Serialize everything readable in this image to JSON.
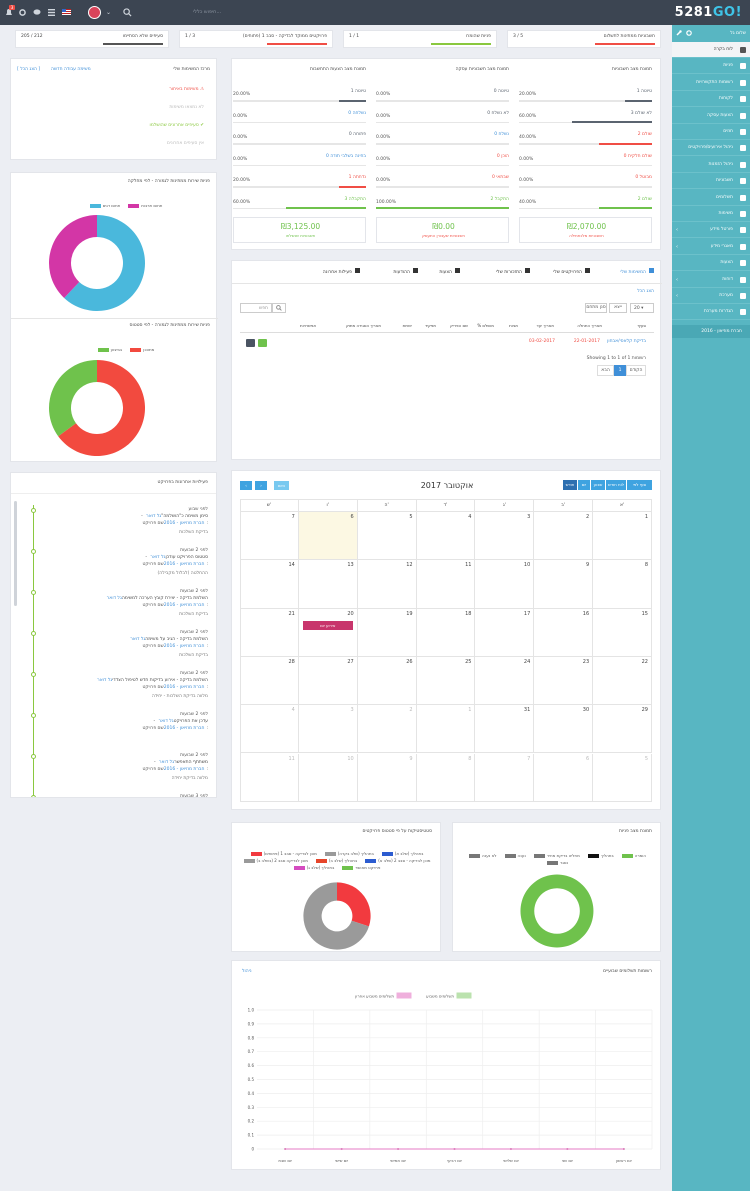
{
  "brand": {
    "logo_main": "5281",
    "logo_go": "GO!"
  },
  "topbar": {
    "search_placeholder": "חיפוש כללי...",
    "notif_count": "3"
  },
  "sidebar": {
    "user": "שלום גל",
    "items": [
      {
        "label": "לוח בקרה",
        "active": true
      },
      {
        "label": "פניות"
      },
      {
        "label": "רשומות התקשרויות"
      },
      {
        "label": "לקוחות"
      },
      {
        "label": "הצעות עסקה"
      },
      {
        "label": "חוזים"
      },
      {
        "label": "ניהול אירועים/פרויקטים"
      },
      {
        "label": "ניהול הזמנות"
      },
      {
        "label": "חשבוניות"
      },
      {
        "label": "תשלומים"
      },
      {
        "label": "משימות"
      },
      {
        "label": "פורטל מידע",
        "arrow": true
      },
      {
        "label": "מאגרי מידע",
        "arrow": true
      },
      {
        "label": "הצעות"
      },
      {
        "label": "דוחות",
        "arrow": true
      },
      {
        "label": "מערכת",
        "arrow": true
      },
      {
        "label": "הגדרות מערכת"
      }
    ],
    "company": "חברת מוזיאון - 2016"
  },
  "kpis": [
    {
      "label": "חשבוניות ממתינות לתשלום",
      "value": "3 / 5",
      "color": "#f04e45"
    },
    {
      "label": "פניות שהומרו",
      "value": "1 / 1",
      "color": "#8ac83f"
    },
    {
      "label": "פרויקטים ממוקד לבדיקה - סבב 1 (פתוחים)",
      "value": "1 / 3",
      "color": "#f04e45"
    },
    {
      "label": "סעיפים שלא הסתיימו",
      "value": "205 / 212",
      "color": "#555"
    }
  ],
  "my_tasks": {
    "title": "מרכז המשימות שלי",
    "links": {
      "new_task": "משימה עבודה חדשה",
      "all": "הצג הכל"
    },
    "rows": [
      {
        "text": "משימות באיחור",
        "color": "#f04e45"
      },
      {
        "text": "לא נמצאו משימות",
        "color": "#bbb"
      },
      {
        "text": "סעיפים אחרונים שהושלמו",
        "color": "#8ac83f"
      },
      {
        "text": "אין סעיפים אחרונים",
        "color": "#bbb"
      }
    ]
  },
  "donut1": {
    "title": "פניות שירות ממתינות לגמורה - לפי מחלקה",
    "legend": [
      {
        "label": "תחום דגים",
        "color": "#4ab8dc"
      },
      {
        "label": "תחום תרבות",
        "color": "#d336a6"
      }
    ],
    "values": [
      62,
      38
    ]
  },
  "donut2": {
    "title": "פניות שירות ממתינות לגמורה - לפי סטטוס",
    "legend": [
      {
        "label": "בביצוע",
        "color": "#6fc24c"
      },
      {
        "label": "מתוכנן",
        "color": "#f24a3f"
      }
    ],
    "values": [
      65,
      35
    ]
  },
  "statuses": {
    "columns": [
      {
        "title": "תמונת מצב חשבוניות",
        "rows": [
          {
            "label": "1 טיוטה",
            "pct": "20.00%",
            "color": "#5b6470"
          },
          {
            "label": "3 לא שולם",
            "pct": "60.00%",
            "color": "#5b6470"
          },
          {
            "label": "2 שולם",
            "pct": "40.00%",
            "color": "#f04e45"
          },
          {
            "label": "0 שולם חלקית",
            "pct": "0.00%",
            "color": "#f04e45"
          },
          {
            "label": "0 מבוטל",
            "pct": "0.00%",
            "color": "#f04e45"
          },
          {
            "label": "2 שולם",
            "pct": "40.00%",
            "color": "#6fc24c"
          }
        ],
        "amount": "₪2,070.00",
        "amount_label": "חשבוניות מלכתחילה",
        "amount_color": "#6fc24c",
        "amount_label_color": "#f04e45"
      },
      {
        "title": "תמונת מצב חשבוניות עסקה",
        "rows": [
          {
            "label": "0 טיוטה",
            "pct": "0.00%",
            "color": "#5b6470"
          },
          {
            "label": "0 לא נשלח",
            "pct": "0.00%",
            "color": "#5b6470"
          },
          {
            "label": "0 נשלח",
            "pct": "0.00%",
            "color": "#3f8fd8"
          },
          {
            "label": "0 הוכן",
            "pct": "0.00%",
            "color": "#f04e45"
          },
          {
            "label": "0 שבתאי",
            "pct": "0.00%",
            "color": "#f04e45"
          },
          {
            "label": "2 התקבל",
            "pct": "100.00%",
            "color": "#6fc24c"
          }
        ],
        "amount": "₪0.00",
        "amount_label": "חשבוניות שעבורן התעסק",
        "amount_color": "#6fc24c",
        "amount_label_color": "#f04e45"
      },
      {
        "title": "תמונת מצב הצעות התחשבות",
        "rows": [
          {
            "label": "1 טיוטה",
            "pct": "20.00%",
            "color": "#5b6470"
          },
          {
            "label": "0 נשלחה",
            "pct": "0.00%",
            "color": "#3f8fd8"
          },
          {
            "label": "0 פתוחה",
            "pct": "0.00%",
            "color": "#5b6470"
          },
          {
            "label": "0 בחינה בשלבי תודה",
            "pct": "0.00%",
            "color": "#3f8fd8"
          },
          {
            "label": "1 נדחתה",
            "pct": "20.00%",
            "color": "#f04e45"
          },
          {
            "label": "3 התקבלה",
            "pct": "60.00%",
            "color": "#6fc24c"
          }
        ],
        "amount": "₪3,125.00",
        "amount_label": "חשבוניות שנשלחו",
        "amount_color": "#6fc24c",
        "amount_label_color": "#6fc24c"
      }
    ]
  },
  "projects": {
    "tabs": [
      "המשימות שלי",
      "הפרויקטים שלי",
      "התזכורות שלי",
      "הצעות",
      "ההודעות",
      "פעילות אחרונה"
    ],
    "view_all": "הצג הכל",
    "per_page": "20",
    "sort": "ייצא",
    "filter": "סנן מתחם",
    "search_placeholder": "חפש",
    "columns": [
      "סעיף",
      "תאריך התחלה",
      "תאריך יעד",
      "תגיות",
      "% מושלם",
      "שם הפריק",
      "תפקיד",
      "ישויות",
      "תאריך הסגירה מתוק",
      "אפשרויות"
    ],
    "rows": [
      {
        "name": "בדיקת קלאסי/אבחון",
        "start": "22-01-2017",
        "due": "03-02-2017"
      }
    ],
    "info": "Showing 1 to 1 of 1 רשומות",
    "prev": "הקודם",
    "page": "1",
    "next": "הבא"
  },
  "activity": {
    "title": "פעילויות אחרונות בפרויקט",
    "items": [
      {
        "time": "לפני שבוע",
        "who": "גל דואר",
        "text": "- סימן משימה כ\"הושלמה\"",
        "proj_label": "שם פרויקט:",
        "proj": "חברת מוזיאון - 2016",
        "note": "בדיקת השלכות"
      },
      {
        "time": "לפני 2 שבועות",
        "who": "גל דואר",
        "text": "- סטטוס הפרויקט עודכן",
        "proj_label": "שם פרויקט:",
        "proj": "חברת מוזיאון - 2016",
        "note": "ההחלטה (לבלול מקבילה)"
      },
      {
        "time": "לפני 2 שבועות",
        "who": "גל דואר",
        "text": "השלמת בדיקה - יצירת קובץ הערכה למשימה",
        "proj_label": "שם פרויקט:",
        "proj": "חברת מוזיאון - 2016",
        "note": "בדיקת השלכות"
      },
      {
        "time": "לפני 2 שבועות",
        "who": "גל דואר",
        "text": "השלמת בדיקה - הגיב על משימה",
        "proj_label": "שם פרויקט:",
        "proj": "חברת מוזיאון - 2016",
        "note": "בדיקת השלכות"
      },
      {
        "time": "לפני 2 שבועות",
        "who": "גל דואר",
        "text": "השלמת בדיקה - אירוע בדיקות חדש לטיפול הצדדי",
        "proj_label": "שם פרויקט:",
        "proj": "חברת מוזיאון - 2016",
        "note": "מלווה בדיקת השלכות - יחידה"
      },
      {
        "time": "לפני 2 שבועות",
        "who": "גל דואר",
        "text": "- עדכן את הפרויקט",
        "proj_label": "שם פרויקט:",
        "proj": "חברת מוזיאון - 2016",
        "note": ""
      },
      {
        "time": "לפני 2 שבועות",
        "who": "גל דואר",
        "text": "- משתתף התאפשר",
        "proj_label": "שם פרויקט:",
        "proj": "חברת מוזיאון - 2016",
        "note": "מלווה בדיקת יחידה"
      },
      {
        "time": "לפני 3 שבועות",
        "who": "גל דואר",
        "text": "- סגור עד שימה",
        "proj_label": "",
        "proj": "",
        "note": ""
      }
    ]
  },
  "calendar": {
    "title": "אוקטובר 2017",
    "today": "היום",
    "views": [
      "סוף לפי",
      "לוח חודש",
      "שבוע",
      "יום",
      "חודש"
    ],
    "weekdays": [
      "א'",
      "ב'",
      "ג'",
      "ד'",
      "ה'",
      "ו'",
      "ש'"
    ],
    "weeks": [
      [
        "1",
        "2",
        "3",
        "4",
        "5",
        "6",
        "7"
      ],
      [
        "8",
        "9",
        "10",
        "11",
        "12",
        "13",
        "14"
      ],
      [
        "15",
        "16",
        "17",
        "18",
        "19",
        "20",
        "21"
      ],
      [
        "22",
        "23",
        "24",
        "25",
        "26",
        "27",
        "28"
      ],
      [
        "29",
        "30",
        "31",
        "1",
        "2",
        "3",
        "4"
      ],
      [
        "5",
        "6",
        "7",
        "8",
        "9",
        "10",
        "11"
      ]
    ],
    "event": "אירוע יום"
  },
  "pie_status": {
    "title": "סטטיסטיקות על פי סטטוס פרויקטים",
    "legend": [
      {
        "label": "מוכן לבדיקה - סבב 1 (פתוחים)",
        "color": "#f23a3f"
      },
      {
        "label": "בתהליך (שלב בקרה)",
        "color": "#9a9a9a"
      },
      {
        "label": "בתהליך (שלב א)",
        "color": "#2c5cd0"
      },
      {
        "label": "מוכן לבדיקה סבב 2 (בשלב ב)",
        "color": "#9a9a9a"
      },
      {
        "label": "בתהליך (שלב ב)",
        "color": "#e6452a"
      },
      {
        "label": "מוכן לבדיקה - סבב 2 (שלב א)",
        "color": "#2c5cd0"
      },
      {
        "label": "בתהליך (שלב ג)",
        "color": "#d54cc0"
      },
      {
        "label": "פרויקט מאושר",
        "color": "#6fc24c"
      }
    ],
    "values": [
      30,
      70
    ]
  },
  "pie_leads": {
    "title": "תמונת מצב פניות",
    "legend": [
      {
        "label": "לא נענה",
        "color": "#777"
      },
      {
        "label": "נענה",
        "color": "#777"
      },
      {
        "label": "מחליט בדיקת מחיר",
        "color": "#777"
      },
      {
        "label": "בתהליך",
        "color": "#111"
      },
      {
        "label": "הומרה",
        "color": "#6fc24c"
      },
      {
        "label": "נסגר",
        "color": "#777"
      }
    ],
    "values": [
      100
    ]
  },
  "chart_data": {
    "type": "line",
    "title": "רשומות תשלומים שבועיים",
    "link": "ניהול",
    "categories": [
      "יום ראשון",
      "יום שני",
      "יום שלישי",
      "יום רביעי",
      "יום חמישי",
      "יום שישי",
      "יום שבת"
    ],
    "series": [
      {
        "name": "תשלומים משבוע",
        "values": [
          0,
          0,
          0,
          0,
          0,
          0,
          0
        ],
        "color": "#8fd07a"
      },
      {
        "name": "תשלומים משבוע אחרון",
        "values": [
          0,
          0,
          0,
          0,
          0,
          0,
          0
        ],
        "color": "#e57bc6"
      }
    ],
    "ylim": [
      0,
      1
    ],
    "yticks": [
      "1.0",
      "0.9",
      "0.8",
      "0.7",
      "0.6",
      "0.5",
      "0.4",
      "0.3",
      "0.2",
      "0.1",
      "0"
    ]
  }
}
